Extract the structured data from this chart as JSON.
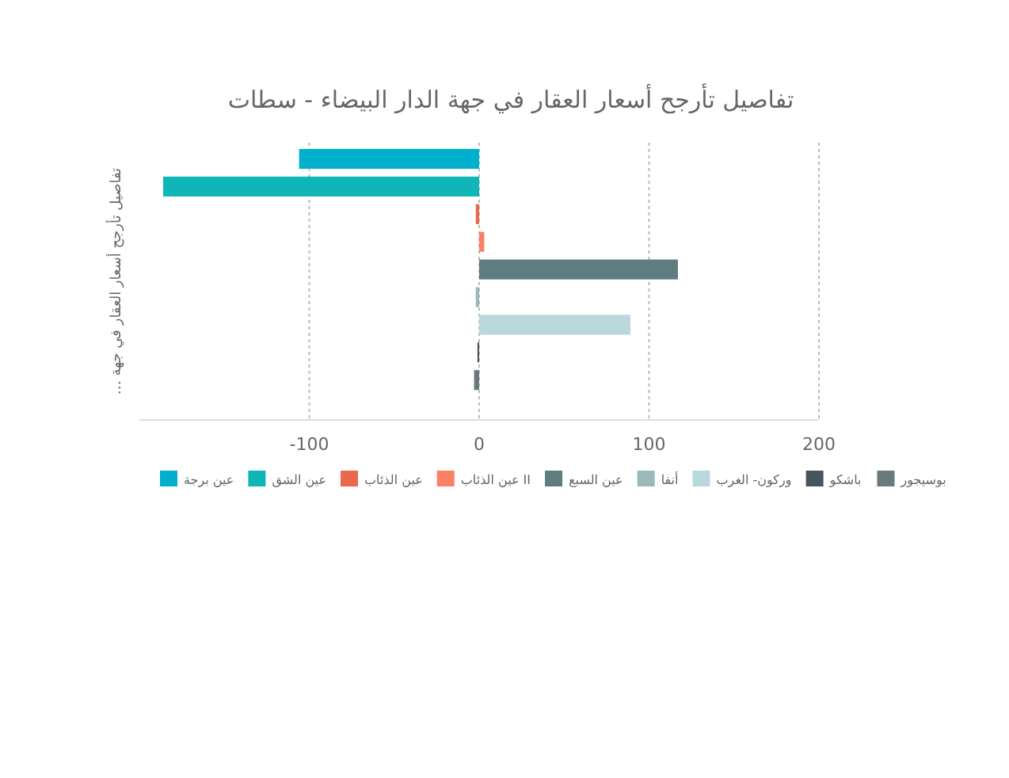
{
  "chart_data": {
    "type": "bar",
    "orientation": "horizontal",
    "title": "تفاصيل تأرجح أسعار العقار في جهة الدار البيضاء - سطات",
    "ylabel": "تفاصيل تأرجح أسعار العقار في جهة …",
    "categories": [
      null
    ],
    "xlim": [
      -200,
      200
    ],
    "xticks": [
      -100,
      0,
      100,
      200
    ],
    "grid": "x",
    "legend": "bottom",
    "series": [
      {
        "name": "عين برجة",
        "color": "#00b0cc",
        "values": [
          -106
        ]
      },
      {
        "name": "عين الشق",
        "color": "#10b5b8",
        "values": [
          -186
        ]
      },
      {
        "name": "عين الذئاب",
        "color": "#e8694d",
        "values": [
          -2
        ]
      },
      {
        "name": "عين الذئاب II",
        "color": "#fa8165",
        "values": [
          3
        ]
      },
      {
        "name": "عين السبع",
        "color": "#5f7d80",
        "values": [
          117
        ]
      },
      {
        "name": "أنفا",
        "color": "#9ab9bd",
        "values": [
          -2
        ]
      },
      {
        "name": "وركون- الغرب",
        "color": "#b8d8dc",
        "values": [
          89
        ]
      },
      {
        "name": "باشكو",
        "color": "#46555b",
        "values": [
          -1
        ]
      },
      {
        "name": "بوسيجور",
        "color": "#687a7c",
        "values": [
          -3
        ]
      }
    ]
  }
}
